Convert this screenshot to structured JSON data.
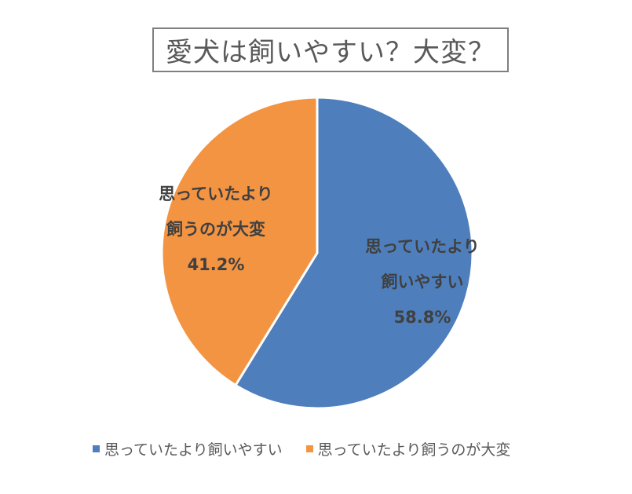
{
  "chart_data": {
    "type": "pie",
    "title": "愛犬は飼いやすい？大変？",
    "categories": [
      "思っていたより飼いやすい",
      "思っていたより飼うのが大変"
    ],
    "values": [
      58.8,
      41.2
    ],
    "colors": [
      "#4e7fbc",
      "#f39443"
    ],
    "data_labels": [
      {
        "line1": "思っていたより",
        "line2": "飼いやすい",
        "pct": "58.8%"
      },
      {
        "line1": "思っていたより",
        "line2": "飼うのが大変",
        "pct": "41.2%"
      }
    ],
    "legend_position": "bottom",
    "start_angle_deg": 0,
    "direction": "clockwise"
  },
  "legend": {
    "items": [
      {
        "label": "思っていたより飼いやすい",
        "color": "#4e7fbc"
      },
      {
        "label": "思っていたより飼うのが大変",
        "color": "#f39443"
      }
    ]
  }
}
